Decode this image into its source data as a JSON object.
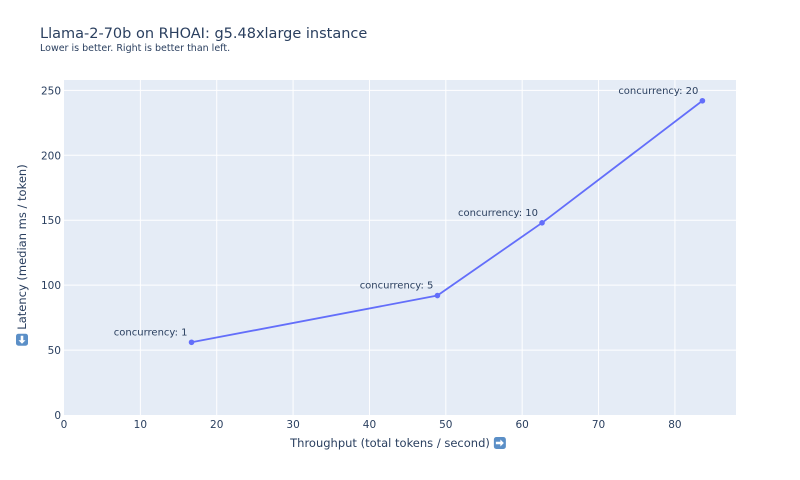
{
  "header": {
    "title": "Llama-2-70b on RHOAI: g5.48xlarge instance",
    "subtitle": "Lower is better. Right is better than left."
  },
  "axes": {
    "x_title": "Throughput (total tokens / second)",
    "x_icon": "right-arrow-emoji-icon",
    "y_title": "Latency (median ms / token)",
    "y_icon": "down-arrow-emoji-icon"
  },
  "colors": {
    "plot_bg": "#e5ecf6",
    "grid": "#ffffff",
    "line": "#636efa",
    "text": "#2a3f5f",
    "emoji_bg": "#5b8fc7"
  },
  "chart_data": {
    "type": "line",
    "title": "Llama-2-70b on RHOAI: g5.48xlarge instance",
    "subtitle": "Lower is better. Right is better than left.",
    "xlabel": "Throughput (total tokens / second) ➡️",
    "ylabel": "⬇️ Latency (median ms / token)",
    "xlim": [
      0,
      88
    ],
    "ylim": [
      0,
      258
    ],
    "x_ticks": [
      0,
      10,
      20,
      30,
      40,
      50,
      60,
      70,
      80
    ],
    "y_ticks": [
      0,
      50,
      100,
      150,
      200,
      250
    ],
    "grid": true,
    "legend": "none",
    "series": [
      {
        "name": "Llama-2-70b",
        "mode": "lines+markers+text",
        "points": [
          {
            "x": 16.7,
            "y": 56,
            "label": "concurrency: 1"
          },
          {
            "x": 48.9,
            "y": 92,
            "label": "concurrency: 5"
          },
          {
            "x": 62.6,
            "y": 148,
            "label": "concurrency: 10"
          },
          {
            "x": 83.6,
            "y": 242,
            "label": "concurrency: 20"
          }
        ]
      }
    ]
  }
}
